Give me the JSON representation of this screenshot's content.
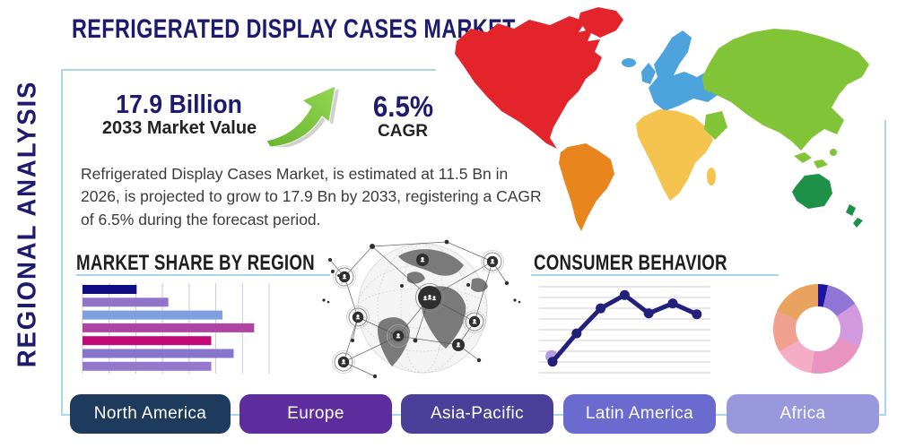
{
  "page_title": "REFRIGERATED DISPLAY CASES MARKET",
  "sidebar_label": "REGIONAL ANALYSIS",
  "stats": {
    "market_value": "17.9 Billion",
    "market_value_label": "2033 Market Value",
    "cagr_value": "6.5%",
    "cagr_label": "CAGR"
  },
  "description": "Refrigerated Display Cases Market, is estimated at 11.5 Bn in 2026, is projected to grow to 17.9 Bn by 2033, registering a CAGR of 6.5% during the forecast period.",
  "colors": {
    "navy": "#1c1b6e",
    "frame_blue": "#a9d7e8",
    "arrow_green": "#76bf3a",
    "heading_dark": "#1e1e1e"
  },
  "icons": {
    "growth_arrow": "trending-up-arrow",
    "globe_network": "globe-network-people",
    "world_map": "world-map-continents"
  },
  "chart_data": [
    {
      "type": "bar",
      "title": "MARKET SHARE BY REGION",
      "orientation": "horizontal",
      "values": [
        29,
        46,
        75,
        92,
        69,
        81,
        69
      ],
      "colors": [
        "#0e0e82",
        "#9174c9",
        "#7f9fe0",
        "#b044a4",
        "#c40a78",
        "#8677cd",
        "#9378cc"
      ],
      "xlim": [
        0,
        100
      ],
      "grid": true,
      "gridline_count": 8
    },
    {
      "type": "line",
      "title": "CONSUMER BEHAVIOR",
      "x": [
        1,
        2,
        3,
        4,
        5,
        6,
        7
      ],
      "values": [
        10,
        44,
        74,
        90,
        68,
        80,
        67
      ],
      "ylim": [
        0,
        100
      ],
      "color": "#23207c",
      "first_point_accent": "#b49fe3",
      "grid": true,
      "gridline_count": 9
    },
    {
      "type": "pie",
      "title": "",
      "donut": true,
      "values": [
        3.5,
        12,
        16,
        21,
        14,
        15,
        18.5
      ],
      "colors": [
        "#1d159e",
        "#8f75d6",
        "#d29ade",
        "#e893c0",
        "#f5adc6",
        "#f0a08f",
        "#e9a35e"
      ]
    }
  ],
  "map_regions": [
    {
      "id": "north_america",
      "color": "#e3242b"
    },
    {
      "id": "south_america",
      "color": "#e8851c"
    },
    {
      "id": "europe",
      "color": "#4da4dc"
    },
    {
      "id": "africa",
      "color": "#f5c44e"
    },
    {
      "id": "asia",
      "color": "#82c437"
    },
    {
      "id": "oceania",
      "color": "#1e9148"
    }
  ],
  "buttons": [
    {
      "label": "North America",
      "color": "#1e3a5c"
    },
    {
      "label": "Europe",
      "color": "#5d2d9e"
    },
    {
      "label": "Asia-Pacific",
      "color": "#4a3f99"
    },
    {
      "label": "Latin America",
      "color": "#6b6ace"
    },
    {
      "label": "Africa",
      "color": "#9a98dd"
    }
  ]
}
